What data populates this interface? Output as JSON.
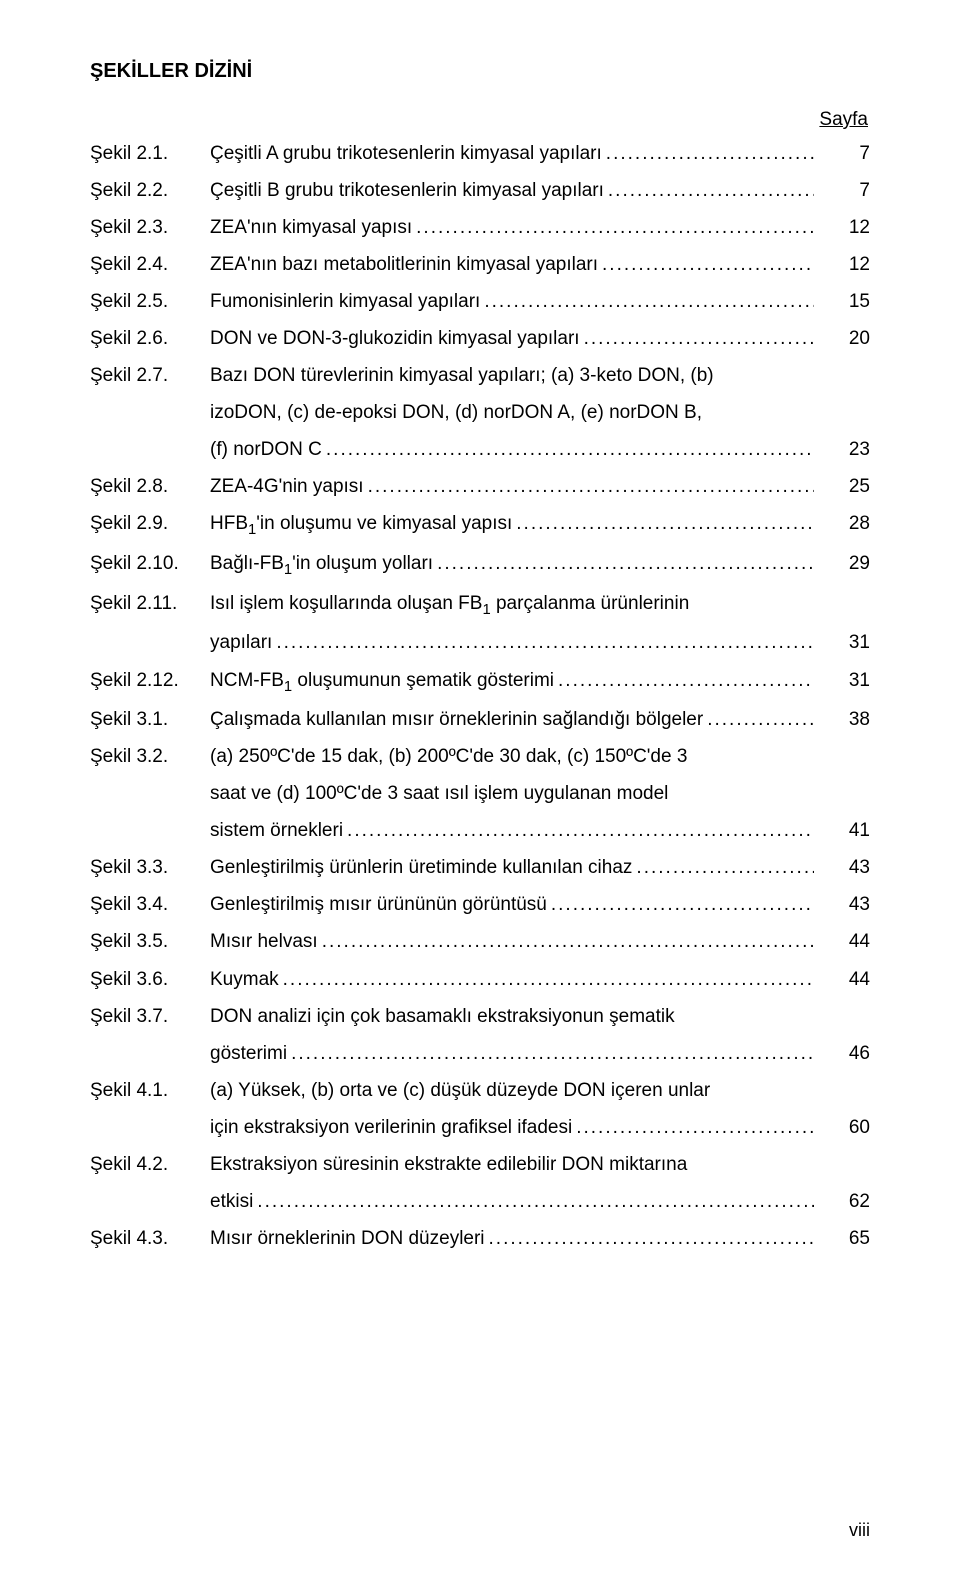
{
  "title": "ŞEKİLLER DİZİNİ",
  "page_column_label": "Sayfa",
  "footer_page_number": "viii",
  "entries": [
    {
      "label": "Şekil 2.1.",
      "lines": [
        "Çeşitli A grubu trikotesenlerin kimyasal yapıları"
      ],
      "page": "7"
    },
    {
      "label": "Şekil 2.2.",
      "lines": [
        "Çeşitli B grubu trikotesenlerin kimyasal yapıları"
      ],
      "page": "7"
    },
    {
      "label": "Şekil 2.3.",
      "lines": [
        "ZEA'nın kimyasal yapısı"
      ],
      "page": "12"
    },
    {
      "label": "Şekil 2.4.",
      "lines": [
        "ZEA'nın bazı metabolitlerinin kimyasal yapıları"
      ],
      "page": "12"
    },
    {
      "label": "Şekil 2.5.",
      "lines": [
        "Fumonisinlerin kimyasal yapıları"
      ],
      "page": "15"
    },
    {
      "label": "Şekil 2.6.",
      "lines": [
        "DON ve DON-3-glukozidin kimyasal yapıları"
      ],
      "page": "20"
    },
    {
      "label": "Şekil 2.7.",
      "lines": [
        "Bazı DON türevlerinin kimyasal yapıları; (a) 3-keto DON, (b)",
        "izoDON, (c) de-epoksi DON, (d) norDON A, (e) norDON B,",
        "(f) norDON C"
      ],
      "page": "23"
    },
    {
      "label": "Şekil 2.8.",
      "lines": [
        "ZEA-4G'nin yapısı"
      ],
      "page": "25"
    },
    {
      "label": "Şekil 2.9.",
      "lines": [
        "HFB₁'in oluşumu ve kimyasal yapısı"
      ],
      "page": "28"
    },
    {
      "label": "Şekil 2.10.",
      "lines": [
        "Bağlı-FB₁'in oluşum yolları"
      ],
      "page": "29"
    },
    {
      "label": "Şekil 2.11.",
      "lines": [
        "Isıl işlem koşullarında oluşan FB₁ parçalanma ürünlerinin",
        "yapıları"
      ],
      "page": "31"
    },
    {
      "label": "Şekil 2.12.",
      "lines": [
        "NCM-FB₁ oluşumunun şematik gösterimi"
      ],
      "page": "31"
    },
    {
      "label": "Şekil 3.1.",
      "lines": [
        "Çalışmada kullanılan mısır örneklerinin sağlandığı bölgeler"
      ],
      "page": "38"
    },
    {
      "label": "Şekil 3.2.",
      "lines": [
        "(a) 250ºC'de 15 dak, (b) 200ºC'de 30 dak, (c) 150ºC'de 3",
        "saat ve (d) 100ºC'de 3 saat ısıl işlem uygulanan model",
        "sistem örnekleri"
      ],
      "page": "41"
    },
    {
      "label": "Şekil 3.3.",
      "lines": [
        "Genleştirilmiş ürünlerin üretiminde kullanılan cihaz"
      ],
      "page": "43"
    },
    {
      "label": "Şekil 3.4.",
      "lines": [
        "Genleştirilmiş mısır ürününün görüntüsü"
      ],
      "page": "43"
    },
    {
      "label": "Şekil 3.5.",
      "lines": [
        "Mısır helvası"
      ],
      "page": "44"
    },
    {
      "label": "Şekil 3.6.",
      "lines": [
        "Kuymak"
      ],
      "page": "44"
    },
    {
      "label": "Şekil 3.7.",
      "lines": [
        "DON analizi için çok basamaklı ekstraksiyonun şematik",
        "gösterimi"
      ],
      "page": "46"
    },
    {
      "label": "Şekil 4.1.",
      "lines": [
        "(a) Yüksek, (b) orta ve (c) düşük düzeyde DON içeren unlar",
        "için ekstraksiyon verilerinin grafiksel ifadesi"
      ],
      "page": "60"
    },
    {
      "label": "Şekil 4.2.",
      "lines": [
        "Ekstraksiyon süresinin ekstrakte edilebilir DON miktarına",
        "etkisi"
      ],
      "page": "62"
    },
    {
      "label": "Şekil 4.3.",
      "lines": [
        "Mısır örneklerinin DON düzeyleri"
      ],
      "page": "65"
    }
  ]
}
